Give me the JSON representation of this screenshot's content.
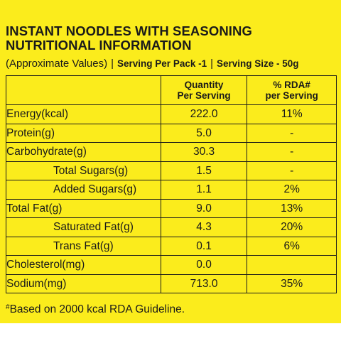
{
  "title": {
    "line1": "INSTANT NOODLES WITH SEASONING",
    "line2": "NUTRITIONAL INFORMATION"
  },
  "subline": {
    "approx": "(Approximate Values)",
    "sep": "|",
    "serving_per_pack": "Serving Per Pack -1",
    "serving_size": "Serving Size - 50g"
  },
  "table": {
    "headers": {
      "blank": "",
      "qty_line1": "Quantity",
      "qty_line2": "Per Serving",
      "rda_line1": "% RDA#",
      "rda_line2": "per Serving"
    },
    "rows": [
      {
        "name": "Energy(kcal)",
        "qty": "222.0",
        "rda": "11%"
      },
      {
        "name": "Protein(g)",
        "qty": "5.0",
        "rda": "-"
      },
      {
        "name": "Carbohydrate(g)",
        "qty": "30.3",
        "rda": "-"
      },
      {
        "name": "Total Sugars(g)",
        "qty": "1.5",
        "rda": "-"
      },
      {
        "name": "Added Sugars(g)",
        "qty": "1.1",
        "rda": "2%"
      },
      {
        "name": "Total Fat(g)",
        "qty": "9.0",
        "rda": "13%"
      },
      {
        "name": "Saturated Fat(g)",
        "qty": "4.3",
        "rda": "20%"
      },
      {
        "name": "Trans Fat(g)",
        "qty": "0.1",
        "rda": "6%"
      },
      {
        "name": "Cholesterol(mg)",
        "qty": "0.0",
        "rda": ""
      },
      {
        "name": "Sodium(mg)",
        "qty": "713.0",
        "rda": "35%"
      }
    ]
  },
  "footnote": {
    "mark": "#",
    "text": "Based on 2000 kcal RDA Guideline."
  },
  "colors": {
    "panel_background": "#fbec1c",
    "text": "#1a1a1a",
    "page_background": "#ffffff"
  }
}
